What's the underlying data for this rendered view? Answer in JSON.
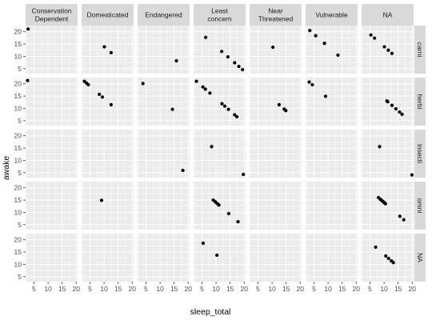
{
  "chart_data": {
    "type": "scatter",
    "xlabel": "sleep_total",
    "ylabel": "awake",
    "xlim": [
      2,
      20.5
    ],
    "ylim": [
      3,
      22.5
    ],
    "xticks": [
      5,
      10,
      15,
      20
    ],
    "yticks": [
      5,
      10,
      15,
      20
    ],
    "grid": true,
    "facet_cols": [
      "Conservation Dependent",
      "Domesticated",
      "Endangered",
      "Least concern",
      "Near Threatened",
      "Vulnerable",
      "NA"
    ],
    "facet_rows": [
      "carni",
      "herbi",
      "insecti",
      "omni",
      "NA"
    ],
    "panels": [
      {
        "row": "carni",
        "col": "Conservation Dependent",
        "x": [
          2.9
        ],
        "y": [
          21.1
        ]
      },
      {
        "row": "carni",
        "col": "Domesticated",
        "x": [
          10.1,
          12.5
        ],
        "y": [
          13.9,
          11.5
        ]
      },
      {
        "row": "carni",
        "col": "Endangered",
        "x": [
          15.8
        ],
        "y": [
          8.2
        ]
      },
      {
        "row": "carni",
        "col": "Least concern",
        "x": [
          6.3,
          12.0,
          14.2,
          16.6,
          18.1,
          19.4
        ],
        "y": [
          17.7,
          12.0,
          9.8,
          7.4,
          5.9,
          4.6
        ]
      },
      {
        "row": "carni",
        "col": "Near Threatened",
        "x": [
          10.3
        ],
        "y": [
          13.7
        ]
      },
      {
        "row": "carni",
        "col": "Vulnerable",
        "x": [
          3.5,
          5.6,
          8.7,
          13.5
        ],
        "y": [
          20.5,
          18.4,
          15.3,
          10.5
        ]
      },
      {
        "row": "carni",
        "col": "NA",
        "x": [
          5.3,
          6.6,
          10.1,
          11.5,
          12.8
        ],
        "y": [
          18.7,
          17.4,
          13.9,
          12.5,
          11.2
        ]
      },
      {
        "row": "herbi",
        "col": "Conservation Dependent",
        "x": [
          2.7
        ],
        "y": [
          21.3
        ]
      },
      {
        "row": "herbi",
        "col": "Domesticated",
        "x": [
          3.0,
          3.8,
          4.4,
          8.3,
          9.4,
          12.5
        ],
        "y": [
          21.0,
          20.2,
          19.6,
          15.7,
          14.6,
          11.5
        ]
      },
      {
        "row": "herbi",
        "col": "Endangered",
        "x": [
          3.9,
          14.4
        ],
        "y": [
          20.1,
          9.6
        ]
      },
      {
        "row": "herbi",
        "col": "Least concern",
        "x": [
          3.0,
          5.3,
          6.2,
          7.8,
          12.1,
          13.1,
          14.4,
          16.6,
          17.4
        ],
        "y": [
          21.0,
          18.7,
          17.8,
          16.2,
          11.9,
          10.9,
          9.6,
          7.4,
          6.6
        ]
      },
      {
        "row": "herbi",
        "col": "Near Threatened",
        "x": [
          12.5,
          14.3,
          14.9
        ],
        "y": [
          11.5,
          9.7,
          9.1
        ]
      },
      {
        "row": "herbi",
        "col": "Vulnerable",
        "x": [
          3.3,
          4.4,
          9.1
        ],
        "y": [
          20.7,
          19.6,
          14.9
        ]
      },
      {
        "row": "herbi",
        "col": "NA",
        "x": [
          11.0,
          11.3,
          12.8,
          14.2,
          15.5,
          16.4
        ],
        "y": [
          13.0,
          12.7,
          11.2,
          9.8,
          8.5,
          7.6
        ]
      },
      {
        "row": "insecti",
        "col": "Endangered",
        "x": [
          18.1
        ],
        "y": [
          5.9
        ]
      },
      {
        "row": "insecti",
        "col": "Least concern",
        "x": [
          8.4,
          19.7
        ],
        "y": [
          15.6,
          4.3
        ]
      },
      {
        "row": "insecti",
        "col": "NA",
        "x": [
          8.4,
          19.9
        ],
        "y": [
          15.6,
          4.1
        ]
      },
      {
        "row": "omni",
        "col": "Domesticated",
        "x": [
          9.1
        ],
        "y": [
          14.9
        ]
      },
      {
        "row": "omni",
        "col": "Least concern",
        "x": [
          9.0,
          9.7,
          10.3,
          10.8,
          11.0,
          14.5,
          17.8
        ],
        "y": [
          15.0,
          14.3,
          13.7,
          13.2,
          13.0,
          9.5,
          6.2
        ]
      },
      {
        "row": "omni",
        "col": "NA",
        "x": [
          8.0,
          8.7,
          9.1,
          9.5,
          9.8,
          10.1,
          10.5,
          15.6,
          17.0
        ],
        "y": [
          16.0,
          15.3,
          14.9,
          14.5,
          14.2,
          13.9,
          13.5,
          8.4,
          7.0
        ]
      },
      {
        "row": "NA",
        "col": "Least concern",
        "x": [
          5.4,
          10.3
        ],
        "y": [
          18.6,
          13.7
        ]
      },
      {
        "row": "NA",
        "col": "NA",
        "x": [
          7.0,
          10.6,
          11.6,
          12.6,
          13.3
        ],
        "y": [
          17.0,
          13.4,
          12.4,
          11.4,
          10.7
        ]
      }
    ]
  }
}
